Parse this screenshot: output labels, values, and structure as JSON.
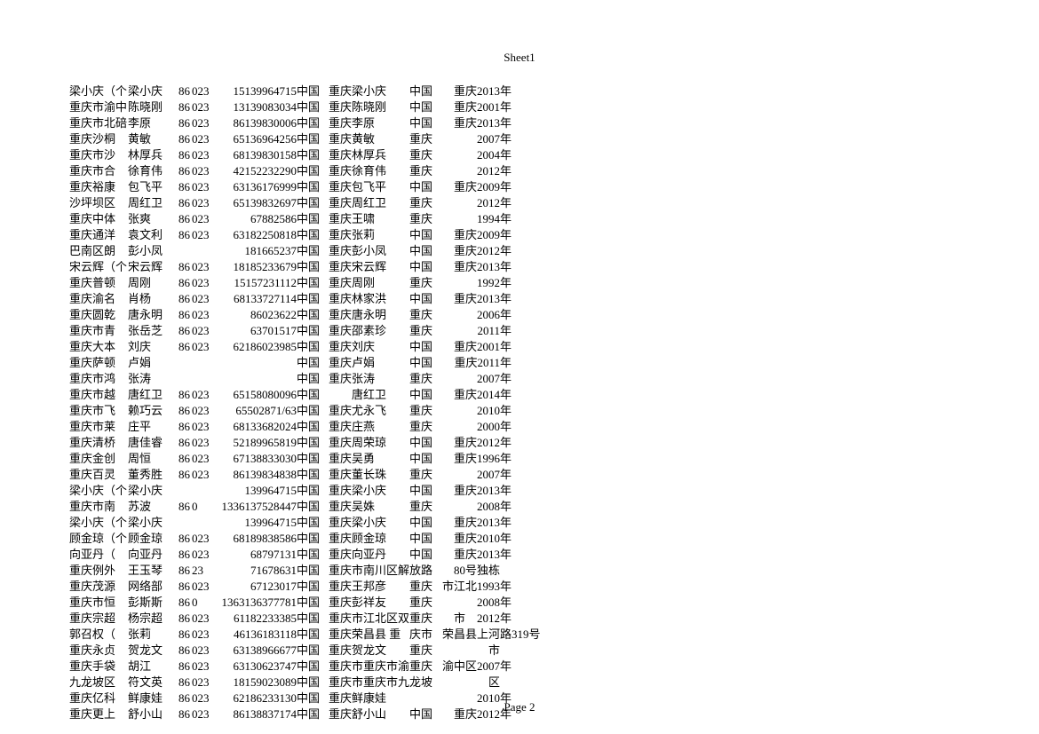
{
  "sheet_title": "Sheet1",
  "page_footer": "Page 2",
  "columns": [
    "a",
    "b",
    "c",
    "d",
    "e",
    "f",
    "g",
    "h",
    "i",
    "j",
    "k"
  ],
  "rows": [
    {
      "a": "梁小庆（个",
      "b": "梁小庆",
      "c": "86",
      "d": "023",
      "e": "15139964715",
      "f": "中国",
      "g": "重庆",
      "h": "梁小庆",
      "i": "中国",
      "j": "重庆2013",
      "k": "年"
    },
    {
      "a": "重庆市渝中",
      "b": "陈晓刚",
      "c": "86",
      "d": "023",
      "e": "13139083034",
      "f": "中国",
      "g": "重庆",
      "h": "陈晓刚",
      "i": "中国",
      "j": "重庆2001",
      "k": "年"
    },
    {
      "a": "重庆市北碚",
      "b": "李原",
      "c": "86",
      "d": "023",
      "e": "86139830006",
      "f": "中国",
      "g": "重庆",
      "h": "李原",
      "i": "中国",
      "j": "重庆2013",
      "k": "年"
    },
    {
      "a": "重庆沙桐",
      "b": "黄敏",
      "c": "86",
      "d": "023",
      "e": "65136964256",
      "f": "中国",
      "g": "重庆",
      "h": "黄敏",
      "i": "重庆",
      "j": "2007",
      "k": "年"
    },
    {
      "a": "重庆市沙",
      "b": "林厚兵",
      "c": "86",
      "d": "023",
      "e": "68139830158",
      "f": "中国",
      "g": "重庆",
      "h": "林厚兵",
      "i": "重庆",
      "j": "2004",
      "k": "年"
    },
    {
      "a": "重庆市合",
      "b": "徐育伟",
      "c": "86",
      "d": "023",
      "e": "42152232290",
      "f": "中国",
      "g": "重庆",
      "h": "徐育伟",
      "i": "重庆",
      "j": "2012",
      "k": "年"
    },
    {
      "a": "重庆裕康",
      "b": "包飞平",
      "c": "86",
      "d": "023",
      "e": "63136176999",
      "f": "中国",
      "g": "重庆",
      "h": "包飞平",
      "i": "中国",
      "j": "重庆2009",
      "k": "年"
    },
    {
      "a": "沙坪坝区",
      "b": "周红卫",
      "c": "86",
      "d": "023",
      "e": "65139832697",
      "f": "中国",
      "g": "重庆",
      "h": "周红卫",
      "i": "重庆",
      "j": "2012",
      "k": "年"
    },
    {
      "a": "重庆中体",
      "b": "张爽",
      "c": "86",
      "d": "023",
      "e": "67882586",
      "f": "中国",
      "g": "重庆",
      "h": "王啸",
      "i": "重庆",
      "j": "1994",
      "k": "年"
    },
    {
      "a": "重庆通洋",
      "b": "袁文利",
      "c": "86",
      "d": "023",
      "e": "63182250818",
      "f": "中国",
      "g": "重庆",
      "h": "张莉",
      "i": "中国",
      "j": "重庆2009",
      "k": "年"
    },
    {
      "a": "巴南区朗",
      "b": "彭小凤",
      "c": "",
      "d": "",
      "e": "181665237",
      "f": "中国",
      "g": "重庆",
      "h": "彭小凤",
      "i": "中国",
      "j": "重庆2012",
      "k": "年"
    },
    {
      "a": "宋云辉（个",
      "b": "宋云辉",
      "c": "86",
      "d": "023",
      "e": "18185233679",
      "f": "中国",
      "g": "重庆",
      "h": "宋云辉",
      "i": "中国",
      "j": "重庆2013",
      "k": "年"
    },
    {
      "a": "重庆普顿",
      "b": "周刚",
      "c": "86",
      "d": "023",
      "e": "15157231112",
      "f": "中国",
      "g": "重庆",
      "h": "周刚",
      "i": "重庆",
      "j": "1992",
      "k": "年"
    },
    {
      "a": "重庆渝名",
      "b": "肖杨",
      "c": "86",
      "d": "023",
      "e": "68133727114",
      "f": "中国",
      "g": "重庆",
      "h": "林家洪",
      "i": "中国",
      "j": "重庆2013",
      "k": "年"
    },
    {
      "a": "重庆圆乾",
      "b": "唐永明",
      "c": "86",
      "d": "023",
      "e": "86023622",
      "f": "中国",
      "g": "重庆",
      "h": "唐永明",
      "i": "重庆",
      "j": "2006",
      "k": "年"
    },
    {
      "a": "重庆市青",
      "b": "张岳芝",
      "c": "86",
      "d": "023",
      "e": "63701517",
      "f": "中国",
      "g": "重庆",
      "h": "邵素珍",
      "i": "重庆",
      "j": "2011",
      "k": "年"
    },
    {
      "a": "重庆大本",
      "b": "刘庆",
      "c": "86",
      "d": "023",
      "e": "62186023985",
      "f": "中国",
      "g": "重庆",
      "h": "刘庆",
      "i": "中国",
      "j": "重庆2001",
      "k": "年"
    },
    {
      "a": "重庆萨顿",
      "b": "卢娟",
      "c": "",
      "d": "",
      "e": "",
      "f": "中国",
      "g": "重庆",
      "h": "卢娟",
      "i": "中国",
      "j": "重庆2011",
      "k": "年"
    },
    {
      "a": "重庆市鸿",
      "b": "张涛",
      "c": "",
      "d": "",
      "e": "",
      "f": "中国",
      "g": "重庆",
      "h": "张涛",
      "i": "重庆",
      "j": "2007",
      "k": "年"
    },
    {
      "a": "重庆市越",
      "b": "唐红卫",
      "c": "86",
      "d": "023",
      "e": "65158080096",
      "f": "中国",
      "g": "",
      "h": "唐红卫",
      "i": "中国",
      "j": "重庆2014",
      "k": "年"
    },
    {
      "a": "重庆市飞",
      "b": "赖巧云",
      "c": "86",
      "d": "023",
      "e": "65502871/63",
      "f": "中国",
      "g": "重庆",
      "h": "尤永飞",
      "i": "重庆",
      "j": "2010",
      "k": "年"
    },
    {
      "a": "重庆市莱",
      "b": "庄平",
      "c": "86",
      "d": "023",
      "e": "68133682024",
      "f": "中国",
      "g": "重庆",
      "h": "庄燕",
      "i": "重庆",
      "j": "2000",
      "k": "年"
    },
    {
      "a": "重庆清桥",
      "b": "唐佳睿",
      "c": "86",
      "d": "023",
      "e": "52189965819",
      "f": "中国",
      "g": "重庆",
      "h": "周荣琼",
      "i": "中国",
      "j": "重庆2012",
      "k": "年"
    },
    {
      "a": "重庆金创",
      "b": "周恒",
      "c": "86",
      "d": "023",
      "e": "67138833030",
      "f": "中国",
      "g": "重庆",
      "h": "吴勇",
      "i": "中国",
      "j": "重庆1996",
      "k": "年"
    },
    {
      "a": "重庆百灵",
      "b": "董秀胜",
      "c": "86",
      "d": "023",
      "e": "86139834838",
      "f": "中国",
      "g": "重庆",
      "h": "董长珠",
      "i": "重庆",
      "j": "2007",
      "k": "年"
    },
    {
      "a": "梁小庆（个",
      "b": "梁小庆",
      "c": "",
      "d": "",
      "e": "139964715",
      "f": "中国",
      "g": "重庆",
      "h": "梁小庆",
      "i": "中国",
      "j": "重庆2013",
      "k": "年"
    },
    {
      "a": "重庆市南",
      "b": "苏波",
      "c": "86",
      "d": "0",
      "e": "1336137528447",
      "f": "中国",
      "g": "重庆",
      "h": "吴姝",
      "i": "重庆",
      "j": "2008",
      "k": "年"
    },
    {
      "a": "梁小庆（个",
      "b": "梁小庆",
      "c": "",
      "d": "",
      "e": "139964715",
      "f": "中国",
      "g": "重庆",
      "h": "梁小庆",
      "i": "中国",
      "j": "重庆2013",
      "k": "年"
    },
    {
      "a": "顾金琼（个",
      "b": "顾金琼",
      "c": "86",
      "d": "023",
      "e": "68189838586",
      "f": "中国",
      "g": "重庆",
      "h": "顾金琼",
      "i": "中国",
      "j": "重庆2010",
      "k": "年"
    },
    {
      "a": "向亚丹（",
      "b": "向亚丹",
      "c": "86",
      "d": "023",
      "e": "68797131",
      "f": "中国",
      "g": "重庆",
      "h": "向亚丹",
      "i": "中国",
      "j": "重庆2013",
      "k": "年"
    },
    {
      "a": "重庆例外",
      "b": "王玉琴",
      "c": "86",
      "d": "23",
      "e": "71678631",
      "f": "中国",
      "g": "重庆",
      "h": "市南川区解",
      "i": "放路",
      "j": "80号独栋",
      "k": ""
    },
    {
      "a": "重庆茂源",
      "b": "网络部",
      "c": "86",
      "d": "023",
      "e": "67123017",
      "f": "中国",
      "g": "重庆",
      "h": "王邦彦",
      "i": "重庆",
      "j": "市江北1993",
      "k": "年"
    },
    {
      "a": "重庆市恒",
      "b": "彭斯斯",
      "c": "86",
      "d": "0",
      "e": "1363136377781",
      "f": "中国",
      "g": "重庆",
      "h": "彭祥友",
      "i": "重庆",
      "j": "2008",
      "k": "年"
    },
    {
      "a": "重庆宗超",
      "b": "杨宗超",
      "c": "86",
      "d": "023",
      "e": "61182233385",
      "f": "中国",
      "g": "重庆",
      "h": "市江北区双",
      "i": "重庆",
      "j": "市　2012",
      "k": "年"
    },
    {
      "a": "郭召权（",
      "b": "张莉",
      "c": "86",
      "d": "023",
      "e": "46136183118",
      "f": "中国",
      "g": "重庆",
      "h": " 荣昌县 重",
      "i": "庆市",
      "j": "荣昌县上河",
      "k": "路319号"
    },
    {
      "a": "重庆永贞",
      "b": "贺龙文",
      "c": "86",
      "d": "023",
      "e": "63138966677",
      "f": "中国",
      "g": "重庆",
      "h": "贺龙文",
      "i": "重庆",
      "j": "市",
      "k": ""
    },
    {
      "a": "重庆手袋",
      "b": "胡江",
      "c": "86",
      "d": "023",
      "e": "63130623747",
      "f": "中国",
      "g": "重庆",
      "h": "市重庆市渝",
      "i": "重庆",
      "j": "渝中区2007",
      "k": "年"
    },
    {
      "a": "九龙坡区",
      "b": "符文英",
      "c": "86",
      "d": "023",
      "e": "18159023089",
      "f": "中国",
      "g": "重庆",
      "h": "市重庆市九",
      "i": "龙坡",
      "j": "区",
      "k": ""
    },
    {
      "a": "重庆亿科",
      "b": "鲜康娃",
      "c": "86",
      "d": "023",
      "e": "62186233130",
      "f": "中国",
      "g": "重庆",
      "h": "鲜康娃",
      "i": "",
      "j": "2010",
      "k": "年"
    },
    {
      "a": "重庆更上",
      "b": "舒小山",
      "c": "86",
      "d": "023",
      "e": "86138837174",
      "f": "中国",
      "g": "重庆",
      "h": "舒小山",
      "i": "中国",
      "j": "重庆2012",
      "k": "年"
    }
  ]
}
